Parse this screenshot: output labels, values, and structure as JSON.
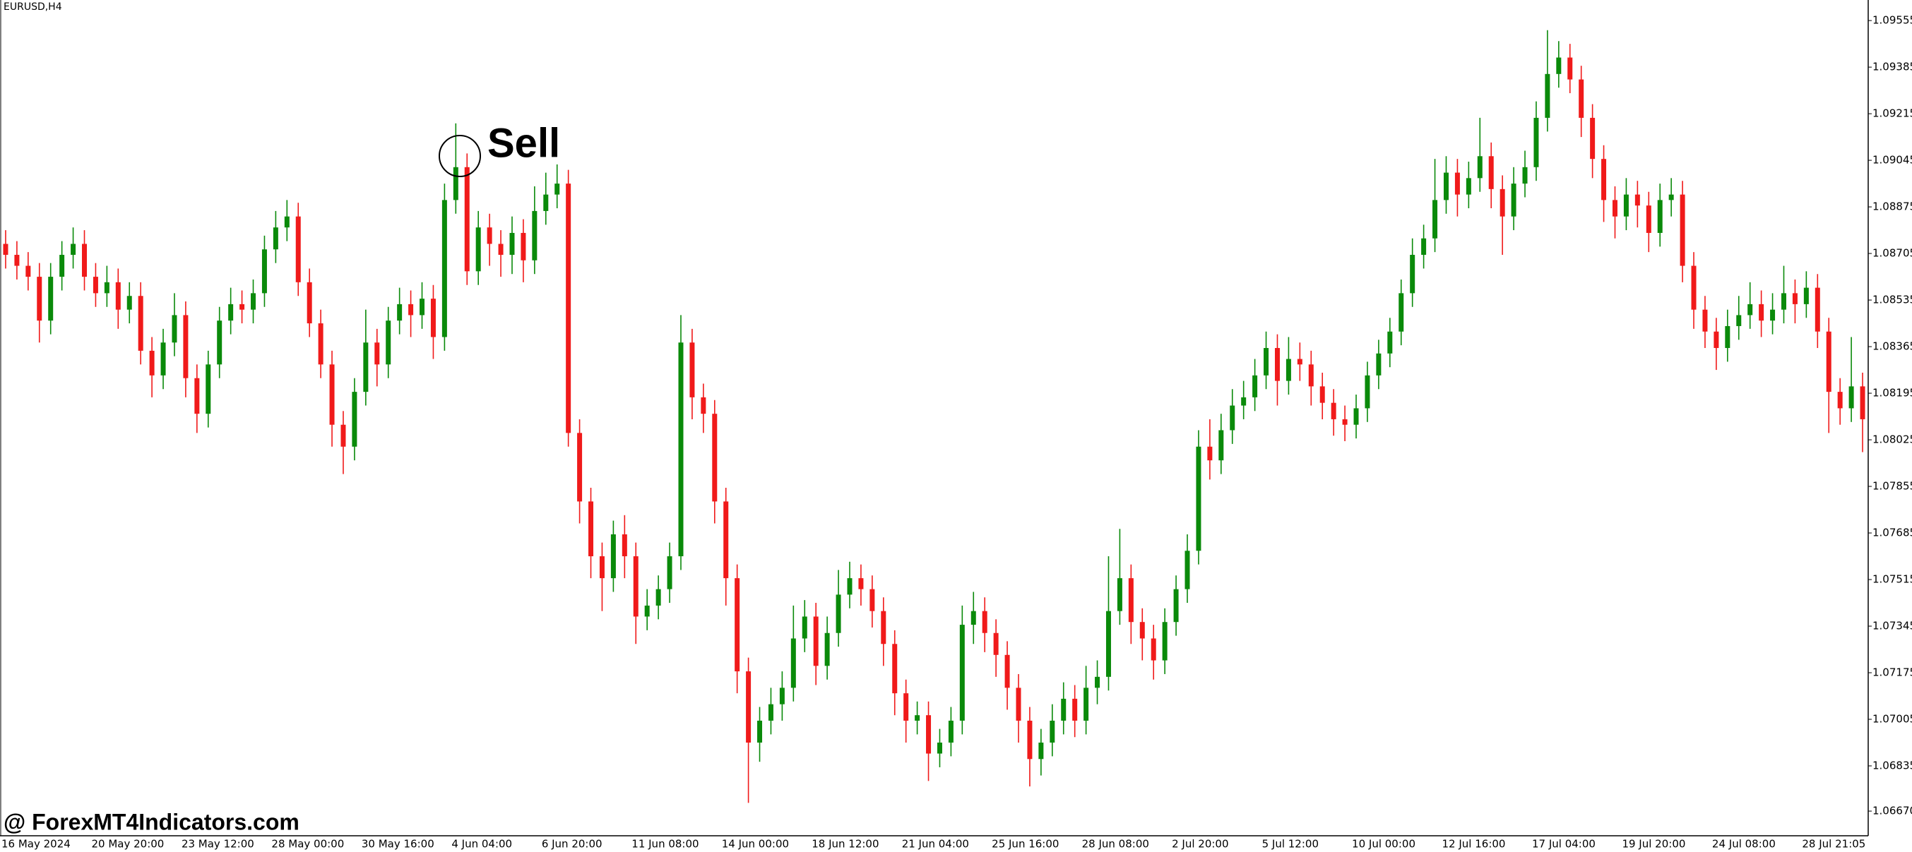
{
  "chart_data": {
    "type": "candlestick",
    "title": "EURUSD,H4",
    "annotation": "Sell",
    "watermark": "@ ForexMT4Indicators.com",
    "up_color": "#0a8a0a",
    "down_color": "#f01a1a",
    "grid": false,
    "ylim": [
      1.0658,
      1.0963
    ],
    "yticks": [
      1.09555,
      1.09385,
      1.09215,
      1.09045,
      1.08875,
      1.08705,
      1.08535,
      1.08365,
      1.08195,
      1.08025,
      1.07855,
      1.07685,
      1.07515,
      1.07345,
      1.07175,
      1.07005,
      1.06835,
      {
        "value": 1.0667,
        "label": "1.06670"
      }
    ],
    "categories": [
      "16 May 2024",
      null,
      null,
      null,
      null,
      null,
      null,
      null,
      "20 May 20:00",
      null,
      null,
      null,
      null,
      null,
      null,
      null,
      "23 May 12:00",
      null,
      null,
      null,
      null,
      null,
      null,
      null,
      "28 May 00:00",
      null,
      null,
      null,
      null,
      null,
      null,
      null,
      "30 May 16:00",
      null,
      null,
      null,
      null,
      null,
      null,
      null,
      "4 Jun 04:00",
      null,
      null,
      null,
      null,
      null,
      null,
      null,
      "6 Jun 20:00",
      null,
      null,
      null,
      null,
      null,
      null,
      null,
      "11 Jun 08:00",
      null,
      null,
      null,
      null,
      null,
      null,
      null,
      "14 Jun 00:00",
      null,
      null,
      null,
      null,
      null,
      null,
      null,
      "18 Jun 12:00",
      null,
      null,
      null,
      null,
      null,
      null,
      null,
      "21 Jun 04:00",
      null,
      null,
      null,
      null,
      null,
      null,
      null,
      "25 Jun 16:00",
      null,
      null,
      null,
      null,
      null,
      null,
      null,
      "28 Jun 08:00",
      null,
      null,
      null,
      null,
      null,
      null,
      null,
      "2 Jul 20:00",
      null,
      null,
      null,
      null,
      null,
      null,
      null,
      "5 Jul 12:00",
      null,
      null,
      null,
      null,
      null,
      null,
      null,
      "10 Jul 00:00",
      null,
      null,
      null,
      null,
      null,
      null,
      null,
      "12 Jul 16:00",
      null,
      null,
      null,
      null,
      null,
      null,
      null,
      "17 Jul 04:00",
      null,
      null,
      null,
      null,
      null,
      null,
      null,
      "19 Jul 20:00",
      null,
      null,
      null,
      null,
      null,
      null,
      null,
      "24 Jul 08:00",
      null,
      null,
      null,
      null,
      null,
      null,
      null,
      "28 Jul 21:05",
      null,
      null,
      null,
      null,
      null
    ],
    "open": [
      1.0874,
      1.087,
      1.0866,
      1.0862,
      1.0846,
      1.0862,
      1.087,
      1.0874,
      1.0862,
      1.0856,
      1.086,
      1.085,
      1.0855,
      1.0835,
      1.0826,
      1.0838,
      1.0848,
      1.0825,
      1.0812,
      1.083,
      1.0846,
      1.0852,
      1.085,
      1.0856,
      1.0872,
      1.088,
      1.0884,
      1.086,
      1.0845,
      1.083,
      1.0808,
      1.08,
      1.082,
      1.0838,
      1.083,
      1.0846,
      1.0852,
      1.0848,
      1.0854,
      1.084,
      1.089,
      1.0902,
      1.0864,
      1.088,
      1.0874,
      1.087,
      1.0878,
      1.0868,
      1.0886,
      1.0892,
      1.0896,
      1.0805,
      1.078,
      1.076,
      1.0752,
      1.0768,
      1.076,
      1.0738,
      1.0742,
      1.0748,
      1.076,
      1.0838,
      1.0818,
      1.0812,
      1.078,
      1.0752,
      1.0718,
      1.0692,
      1.07,
      1.0706,
      1.0712,
      1.073,
      1.0738,
      1.072,
      1.0732,
      1.0746,
      1.0752,
      1.0748,
      1.074,
      1.0728,
      1.071,
      1.07,
      1.0702,
      1.0688,
      1.0692,
      1.07,
      1.0735,
      1.074,
      1.0732,
      1.0724,
      1.0712,
      1.07,
      1.0686,
      1.0692,
      1.07,
      1.0708,
      1.07,
      1.0712,
      1.0716,
      1.074,
      1.0752,
      1.0736,
      1.073,
      1.0722,
      1.0736,
      1.0748,
      1.0762,
      1.08,
      1.0795,
      1.0806,
      1.0815,
      1.0818,
      1.0826,
      1.0836,
      1.0824,
      1.0832,
      1.083,
      1.0822,
      1.0816,
      1.081,
      1.0808,
      1.0814,
      1.0826,
      1.0834,
      1.0842,
      1.0856,
      1.087,
      1.0876,
      1.089,
      1.09,
      1.0892,
      1.0898,
      1.0906,
      1.0894,
      1.0884,
      1.0896,
      1.0902,
      1.092,
      1.0936,
      1.0942,
      1.0934,
      1.092,
      1.0905,
      1.089,
      1.0884,
      1.0892,
      1.0888,
      1.0878,
      1.089,
      1.0892,
      1.0866,
      1.085,
      1.0842,
      1.0836,
      1.0844,
      1.0848,
      1.0852,
      1.0846,
      1.085,
      1.0856,
      1.0852,
      1.0858,
      1.0842,
      1.082,
      1.0814,
      1.0822
    ],
    "high": [
      1.0879,
      1.0875,
      1.0871,
      1.0867,
      1.0867,
      1.0875,
      1.088,
      1.0879,
      1.0867,
      1.0866,
      1.0865,
      1.086,
      1.086,
      1.084,
      1.0843,
      1.0856,
      1.0853,
      1.083,
      1.0835,
      1.0851,
      1.0858,
      1.0857,
      1.0861,
      1.0877,
      1.0886,
      1.089,
      1.0889,
      1.0865,
      1.085,
      1.0835,
      1.0813,
      1.0825,
      1.085,
      1.0843,
      1.0851,
      1.0858,
      1.0857,
      1.086,
      1.0859,
      1.0896,
      1.0918,
      1.0907,
      1.0886,
      1.0885,
      1.0879,
      1.0884,
      1.0883,
      1.0895,
      1.09,
      1.0903,
      1.0901,
      1.081,
      1.0785,
      1.0765,
      1.0773,
      1.0775,
      1.0765,
      1.0748,
      1.0753,
      1.0765,
      1.0848,
      1.0843,
      1.0823,
      1.0817,
      1.0785,
      1.0757,
      1.0723,
      1.0705,
      1.0712,
      1.0718,
      1.0742,
      1.0744,
      1.0743,
      1.0738,
      1.0755,
      1.0758,
      1.0757,
      1.0753,
      1.0745,
      1.0733,
      1.0715,
      1.0707,
      1.0707,
      1.0697,
      1.0705,
      1.0742,
      1.0747,
      1.0745,
      1.0737,
      1.0729,
      1.0717,
      1.0705,
      1.0697,
      1.0706,
      1.0714,
      1.0713,
      1.072,
      1.0722,
      1.076,
      1.077,
      1.0757,
      1.0741,
      1.0735,
      1.0741,
      1.0753,
      1.0768,
      1.0806,
      1.081,
      1.0812,
      1.0821,
      1.0824,
      1.0832,
      1.0842,
      1.0841,
      1.084,
      1.0838,
      1.0835,
      1.0827,
      1.0821,
      1.0815,
      1.0819,
      1.0831,
      1.0839,
      1.0847,
      1.0861,
      1.0876,
      1.0881,
      1.0905,
      1.0906,
      1.0905,
      1.0904,
      1.092,
      1.0911,
      1.0899,
      1.0902,
      1.0908,
      1.0926,
      1.0952,
      1.0948,
      1.0947,
      1.0939,
      1.0925,
      1.091,
      1.0895,
      1.0898,
      1.0897,
      1.0893,
      1.0896,
      1.0898,
      1.0897,
      1.0871,
      1.0855,
      1.0847,
      1.085,
      1.0855,
      1.086,
      1.0857,
      1.0856,
      1.0866,
      1.0861,
      1.0864,
      1.0863,
      1.0847,
      1.0825,
      1.084,
      1.0827
    ],
    "low": [
      1.0865,
      1.0861,
      1.0857,
      1.0838,
      1.0841,
      1.0857,
      1.0865,
      1.0857,
      1.0851,
      1.0851,
      1.0843,
      1.0845,
      1.083,
      1.0818,
      1.0821,
      1.0833,
      1.0818,
      1.0805,
      1.0807,
      1.0825,
      1.0841,
      1.0845,
      1.0845,
      1.0851,
      1.0867,
      1.0875,
      1.0855,
      1.084,
      1.0825,
      1.08,
      1.079,
      1.0795,
      1.0815,
      1.0822,
      1.0825,
      1.0841,
      1.084,
      1.0843,
      1.0832,
      1.0835,
      1.0885,
      1.0859,
      1.0859,
      1.0866,
      1.0862,
      1.0863,
      1.086,
      1.0863,
      1.0881,
      1.0887,
      1.08,
      1.0772,
      1.0752,
      1.074,
      1.0747,
      1.0752,
      1.0728,
      1.0733,
      1.0737,
      1.0743,
      1.0755,
      1.081,
      1.0805,
      1.0772,
      1.0742,
      1.071,
      1.067,
      1.0685,
      1.0695,
      1.07,
      1.0707,
      1.0725,
      1.0713,
      1.0715,
      1.0727,
      1.0741,
      1.0742,
      1.0734,
      1.072,
      1.0702,
      1.0692,
      1.0695,
      1.0678,
      1.0683,
      1.0687,
      1.0695,
      1.0728,
      1.0725,
      1.0716,
      1.0704,
      1.0692,
      1.0676,
      1.068,
      1.0687,
      1.0695,
      1.0694,
      1.0695,
      1.0706,
      1.0711,
      1.0735,
      1.0728,
      1.0722,
      1.0715,
      1.0717,
      1.0731,
      1.0743,
      1.0757,
      1.0788,
      1.079,
      1.0801,
      1.081,
      1.0813,
      1.0821,
      1.0815,
      1.0819,
      1.0824,
      1.0815,
      1.081,
      1.0804,
      1.0802,
      1.0803,
      1.0809,
      1.0821,
      1.0829,
      1.0837,
      1.0851,
      1.0865,
      1.0871,
      1.0885,
      1.0884,
      1.0887,
      1.0893,
      1.0887,
      1.087,
      1.0879,
      1.0891,
      1.0897,
      1.0915,
      1.0931,
      1.0929,
      1.0913,
      1.0898,
      1.0882,
      1.0876,
      1.0879,
      1.088,
      1.0871,
      1.0873,
      1.0884,
      1.086,
      1.0843,
      1.0836,
      1.0828,
      1.0831,
      1.0839,
      1.0843,
      1.084,
      1.0841,
      1.0845,
      1.0845,
      1.0847,
      1.0836,
      1.0805,
      1.0808,
      1.0809,
      1.0798
    ],
    "close": [
      1.087,
      1.0866,
      1.0862,
      1.0846,
      1.0862,
      1.087,
      1.0874,
      1.0862,
      1.0856,
      1.086,
      1.085,
      1.0855,
      1.0835,
      1.0826,
      1.0838,
      1.0848,
      1.0825,
      1.0812,
      1.083,
      1.0846,
      1.0852,
      1.085,
      1.0856,
      1.0872,
      1.088,
      1.0884,
      1.086,
      1.0845,
      1.083,
      1.0808,
      1.08,
      1.082,
      1.0838,
      1.083,
      1.0846,
      1.0852,
      1.0848,
      1.0854,
      1.084,
      1.089,
      1.0902,
      1.0864,
      1.088,
      1.0874,
      1.087,
      1.0878,
      1.0868,
      1.0886,
      1.0892,
      1.0896,
      1.0805,
      1.078,
      1.076,
      1.0752,
      1.0768,
      1.076,
      1.0738,
      1.0742,
      1.0748,
      1.076,
      1.0838,
      1.0818,
      1.0812,
      1.078,
      1.0752,
      1.0718,
      1.0692,
      1.07,
      1.0706,
      1.0712,
      1.073,
      1.0738,
      1.072,
      1.0732,
      1.0746,
      1.0752,
      1.0748,
      1.074,
      1.0728,
      1.071,
      1.07,
      1.0702,
      1.0688,
      1.0692,
      1.07,
      1.0735,
      1.074,
      1.0732,
      1.0724,
      1.0712,
      1.07,
      1.0686,
      1.0692,
      1.07,
      1.0708,
      1.07,
      1.0712,
      1.0716,
      1.074,
      1.0752,
      1.0736,
      1.073,
      1.0722,
      1.0736,
      1.0748,
      1.0762,
      1.08,
      1.0795,
      1.0806,
      1.0815,
      1.0818,
      1.0826,
      1.0836,
      1.0824,
      1.0832,
      1.083,
      1.0822,
      1.0816,
      1.081,
      1.0808,
      1.0814,
      1.0826,
      1.0834,
      1.0842,
      1.0856,
      1.087,
      1.0876,
      1.089,
      1.09,
      1.0892,
      1.0898,
      1.0906,
      1.0894,
      1.0884,
      1.0896,
      1.0902,
      1.092,
      1.0936,
      1.0942,
      1.0934,
      1.092,
      1.0905,
      1.089,
      1.0884,
      1.0892,
      1.0888,
      1.0878,
      1.089,
      1.0892,
      1.0866,
      1.085,
      1.0842,
      1.0836,
      1.0844,
      1.0848,
      1.0852,
      1.0846,
      1.085,
      1.0856,
      1.0852,
      1.0858,
      1.0842,
      1.082,
      1.0814,
      1.0822,
      1.081
    ]
  }
}
